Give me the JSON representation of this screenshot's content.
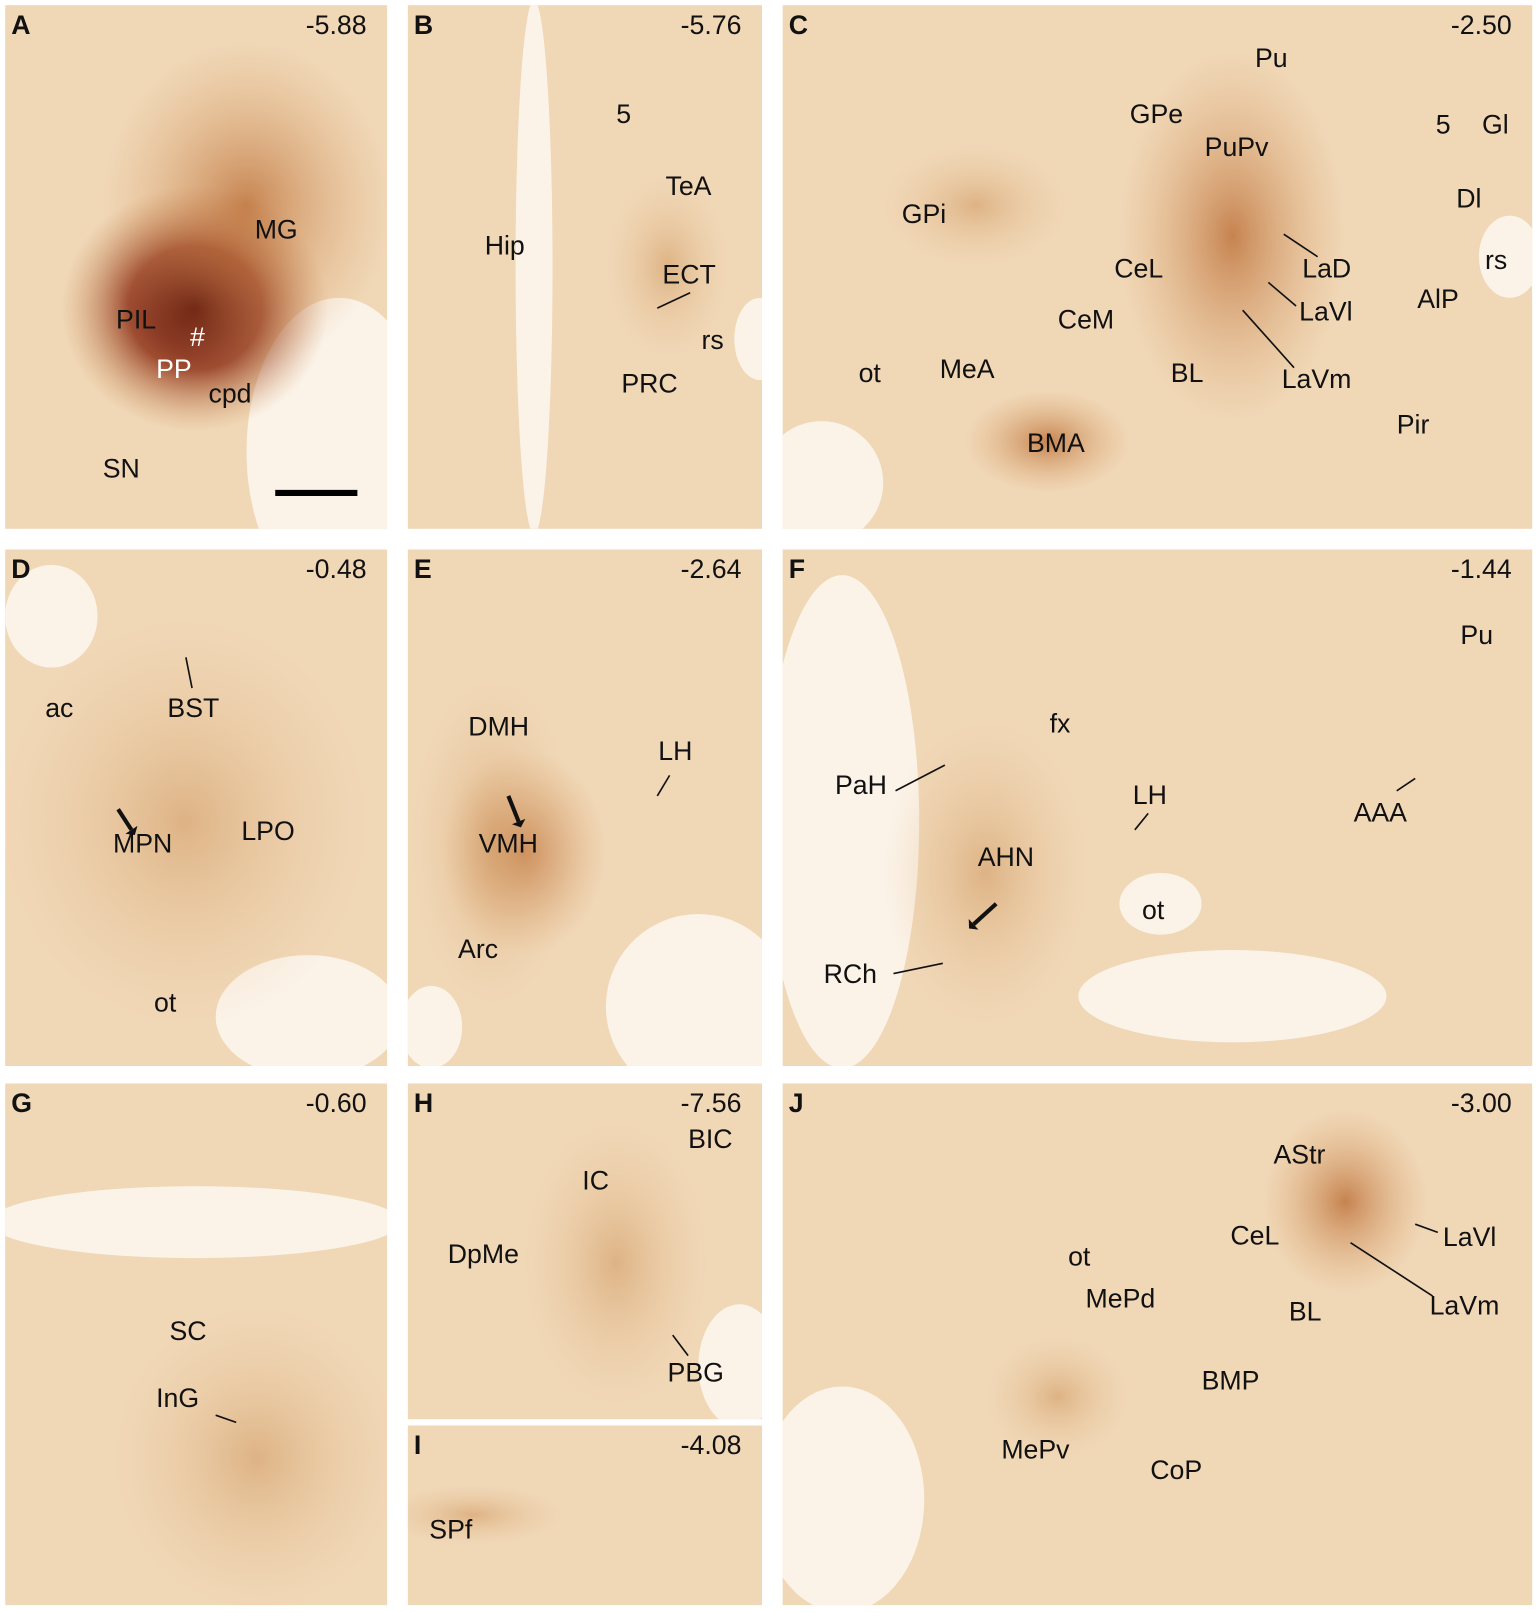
{
  "panels": [
    {
      "letter": "A",
      "coordinate": "-5.88",
      "labels": [
        "MG",
        "PIL",
        "#",
        "PP",
        "cpd",
        "SN"
      ]
    },
    {
      "letter": "B",
      "coordinate": "-5.76",
      "labels": [
        "5",
        "TeA",
        "Hip",
        "ECT",
        "rs",
        "PRC"
      ]
    },
    {
      "letter": "C",
      "coordinate": "-2.50",
      "labels": [
        "Pu",
        "GPe",
        "PuPv",
        "5",
        "Gl",
        "Dl",
        "GPi",
        "rs",
        "CeL",
        "LaD",
        "AlP",
        "LaVl",
        "CeM",
        "ot",
        "MeA",
        "BL",
        "LaVm",
        "Pir",
        "BMA"
      ]
    },
    {
      "letter": "D",
      "coordinate": "-0.48",
      "labels": [
        "ac",
        "BST",
        "MPN",
        "LPO",
        "ot"
      ]
    },
    {
      "letter": "E",
      "coordinate": "-2.64",
      "labels": [
        "DMH",
        "LH",
        "VMH",
        "Arc"
      ]
    },
    {
      "letter": "F",
      "coordinate": "-1.44",
      "labels": [
        "Pu",
        "fx",
        "PaH",
        "LH",
        "AAA",
        "AHN",
        "ot",
        "RCh"
      ]
    },
    {
      "letter": "G",
      "coordinate": "-0.60",
      "labels": [
        "SC",
        "InG"
      ]
    },
    {
      "letter": "H",
      "coordinate": "-7.56",
      "labels": [
        "BIC",
        "IC",
        "DpMe",
        "PBG"
      ]
    },
    {
      "letter": "I",
      "coordinate": "-4.08",
      "labels": [
        "SPf"
      ]
    },
    {
      "letter": "J",
      "coordinate": "-3.00",
      "labels": [
        "AStr",
        "LaVl",
        "CeL",
        "ot",
        "MePd",
        "LaVm",
        "BL",
        "BMP",
        "MePv",
        "CoP"
      ]
    }
  ]
}
